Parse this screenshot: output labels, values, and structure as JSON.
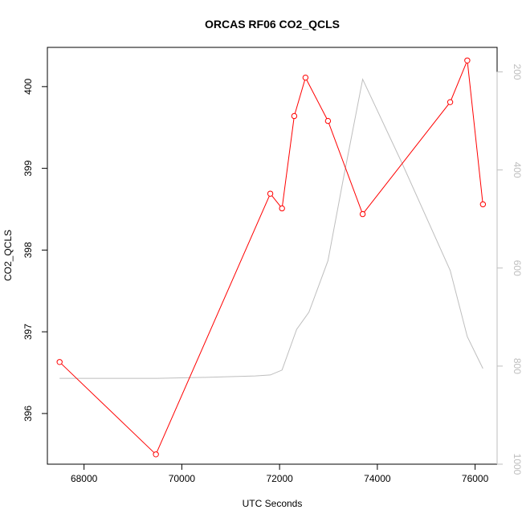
{
  "chart_data": {
    "type": "line",
    "title": "ORCAS RF06 CO2_QCLS",
    "xlabel": "UTC Seconds",
    "ylabel": "CO2_QCLS",
    "xlim": [
      67250,
      76450
    ],
    "ylim": [
      395.38,
      400.48
    ],
    "x_ticks": [
      68000,
      70000,
      72000,
      74000,
      76000
    ],
    "y_ticks": [
      396,
      397,
      398,
      399,
      400
    ],
    "y2lim": [
      1000,
      150
    ],
    "y2_ticks": [
      200,
      400,
      600,
      800,
      1000
    ],
    "colors": {
      "primary": "#ff0000",
      "secondary": "#bebebe"
    },
    "series": [
      {
        "axis": "left",
        "style": "line+points",
        "color": "#ff0000",
        "x": [
          67500,
          69470,
          71810,
          72050,
          72300,
          72530,
          72990,
          73700,
          75490,
          75840,
          76160
        ],
        "y": [
          396.63,
          395.5,
          398.69,
          398.51,
          399.64,
          400.11,
          399.58,
          398.44,
          399.81,
          400.32,
          398.56
        ]
      },
      {
        "axis": "right",
        "style": "line",
        "color": "#bebebe",
        "x": [
          67500,
          68500,
          69500,
          70500,
          71500,
          71810,
          72050,
          72350,
          72600,
          72990,
          73300,
          73700,
          74500,
          75490,
          75840,
          76160
        ],
        "y": [
          825,
          825,
          825,
          823,
          820,
          818,
          808,
          725,
          690,
          585,
          420,
          215,
          385,
          605,
          740,
          805
        ]
      }
    ]
  }
}
